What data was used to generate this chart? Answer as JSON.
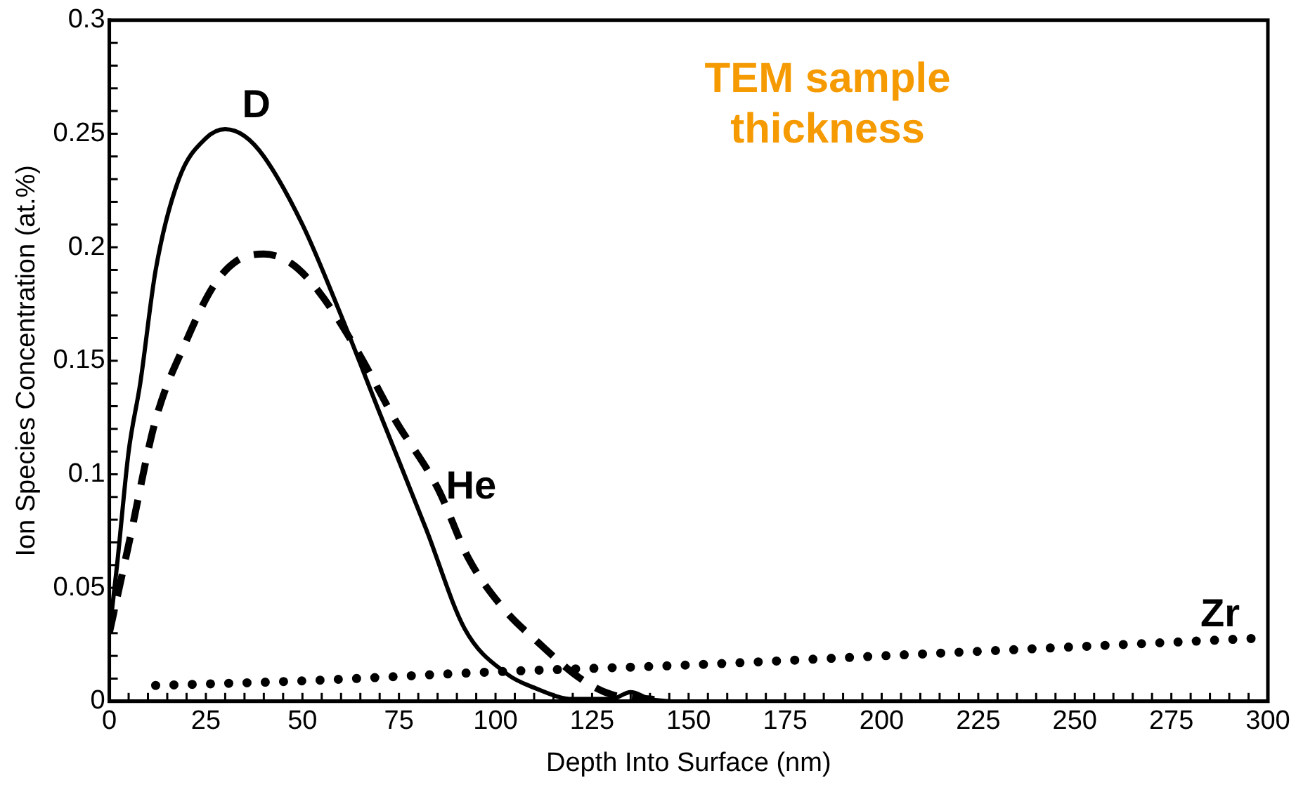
{
  "chart_data": {
    "type": "line",
    "xlabel": "Depth Into Surface (nm)",
    "ylabel": "Ion Species Concentration (at.%)",
    "annotations": [
      "TEM sample thickness"
    ],
    "xlim": [
      0,
      300
    ],
    "ylim": [
      0,
      0.3
    ],
    "xticks": [
      0,
      {
        "value": 5,
        "label": null
      },
      {
        "value": 10,
        "label": null
      },
      {
        "value": 15,
        "label": null
      },
      {
        "value": 20,
        "label": null
      },
      25,
      {
        "value": 30,
        "label": null
      },
      {
        "value": 35,
        "label": null
      },
      {
        "value": 40,
        "label": null
      },
      {
        "value": 45,
        "label": null
      },
      50,
      {
        "value": 55,
        "label": null
      },
      {
        "value": 60,
        "label": null
      },
      {
        "value": 65,
        "label": null
      },
      {
        "value": 70,
        "label": null
      },
      75,
      {
        "value": 80,
        "label": null
      },
      {
        "value": 85,
        "label": null
      },
      {
        "value": 90,
        "label": null
      },
      {
        "value": 95,
        "label": null
      },
      100,
      {
        "value": 105,
        "label": null
      },
      {
        "value": 110,
        "label": null
      },
      {
        "value": 115,
        "label": null
      },
      {
        "value": 120,
        "label": null
      },
      125,
      {
        "value": 130,
        "label": null
      },
      {
        "value": 135,
        "label": null
      },
      {
        "value": 140,
        "label": null
      },
      {
        "value": 145,
        "label": null
      },
      150,
      {
        "value": 155,
        "label": null
      },
      {
        "value": 160,
        "label": null
      },
      {
        "value": 165,
        "label": null
      },
      {
        "value": 170,
        "label": null
      },
      175,
      {
        "value": 180,
        "label": null
      },
      {
        "value": 185,
        "label": null
      },
      {
        "value": 190,
        "label": null
      },
      {
        "value": 195,
        "label": null
      },
      200,
      {
        "value": 205,
        "label": null
      },
      {
        "value": 210,
        "label": null
      },
      {
        "value": 215,
        "label": null
      },
      {
        "value": 220,
        "label": null
      },
      225,
      {
        "value": 230,
        "label": null
      },
      {
        "value": 235,
        "label": null
      },
      {
        "value": 240,
        "label": null
      },
      {
        "value": 245,
        "label": null
      },
      250,
      {
        "value": 255,
        "label": null
      },
      {
        "value": 260,
        "label": null
      },
      {
        "value": 265,
        "label": null
      },
      {
        "value": 270,
        "label": null
      },
      275,
      {
        "value": 280,
        "label": null
      },
      {
        "value": 285,
        "label": null
      },
      {
        "value": 290,
        "label": null
      },
      {
        "value": 295,
        "label": null
      },
      300
    ],
    "yticks": [
      0,
      {
        "value": 0.01,
        "label": null
      },
      {
        "value": 0.02,
        "label": null
      },
      {
        "value": 0.03,
        "label": null
      },
      {
        "value": 0.04,
        "label": null
      },
      0.05,
      {
        "value": 0.06,
        "label": null
      },
      {
        "value": 0.07,
        "label": null
      },
      {
        "value": 0.08,
        "label": null
      },
      {
        "value": 0.09,
        "label": null
      },
      0.1,
      {
        "value": 0.11,
        "label": null
      },
      {
        "value": 0.12,
        "label": null
      },
      {
        "value": 0.13,
        "label": null
      },
      {
        "value": 0.14,
        "label": null
      },
      0.15,
      {
        "value": 0.16,
        "label": null
      },
      {
        "value": 0.17,
        "label": null
      },
      {
        "value": 0.18,
        "label": null
      },
      {
        "value": 0.19,
        "label": null
      },
      0.2,
      {
        "value": 0.21,
        "label": null
      },
      {
        "value": 0.22,
        "label": null
      },
      {
        "value": 0.23,
        "label": null
      },
      {
        "value": 0.24,
        "label": null
      },
      0.25,
      {
        "value": 0.26,
        "label": null
      },
      {
        "value": 0.27,
        "label": null
      },
      {
        "value": 0.28,
        "label": null
      },
      {
        "value": 0.29,
        "label": null
      },
      0.3
    ],
    "grid": false,
    "legend": false,
    "marker": "none",
    "series": [
      {
        "name": "D",
        "color": "#000000",
        "line_style": "solid",
        "x": [
          0,
          2,
          5,
          8,
          12,
          18,
          25,
          30,
          35,
          40,
          50,
          60,
          70,
          82,
          92,
          103,
          110,
          120,
          130,
          135,
          140,
          145
        ],
        "values": [
          0.03,
          0.06,
          0.11,
          0.14,
          0.19,
          0.23,
          0.248,
          0.252,
          0.249,
          0.24,
          0.21,
          0.17,
          0.127,
          0.076,
          0.032,
          0.012,
          0.006,
          0.001,
          0.001,
          0.004,
          0.001,
          0
        ]
      },
      {
        "name": "He",
        "color": "#000000",
        "line_style": "dashed",
        "x": [
          0,
          5,
          12,
          20,
          27,
          33,
          40,
          47,
          54,
          64,
          74,
          85,
          93,
          102,
          111,
          122,
          130,
          140,
          145
        ],
        "values": [
          0.03,
          0.069,
          0.124,
          0.159,
          0.183,
          0.194,
          0.197,
          0.193,
          0.181,
          0.155,
          0.124,
          0.094,
          0.063,
          0.041,
          0.026,
          0.01,
          0.003,
          0.001,
          0
        ]
      },
      {
        "name": "Zr",
        "color": "#000000",
        "line_style": "dotted",
        "x": [
          12,
          50,
          100,
          150,
          200,
          250,
          300
        ],
        "values": [
          0.007,
          0.009,
          0.013,
          0.016,
          0.02,
          0.024,
          0.028
        ]
      }
    ]
  }
}
